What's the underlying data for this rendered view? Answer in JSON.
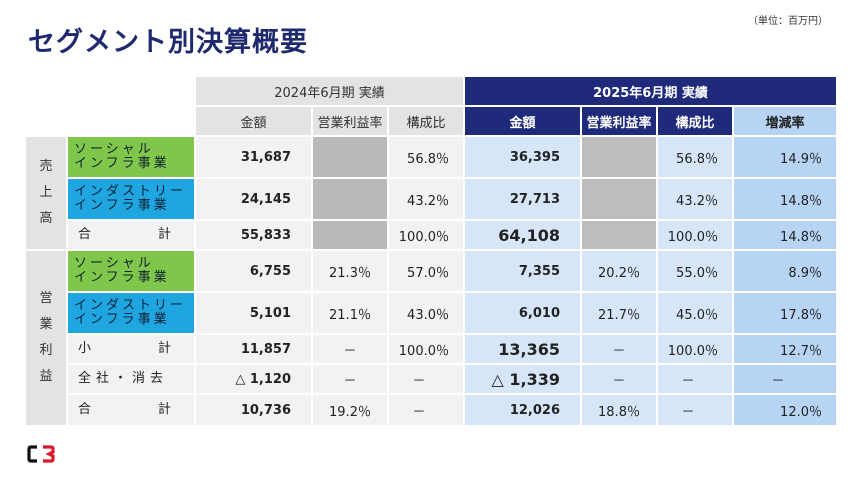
{
  "title": "セグメント別決算概要",
  "unit": "（単位：百万円）",
  "periods": {
    "p2024": "2024年6月期 実績",
    "p2025": "2025年6月期 実績"
  },
  "col_headers": {
    "amount": "金額",
    "op_margin": "営業利益率",
    "composition": "構成比",
    "change": "増減率"
  },
  "groups": {
    "sales": "売上高",
    "op_profit": "営業利益"
  },
  "rows": [
    {
      "label1": "ソーシャル",
      "label2": "インフラ事業",
      "v24": "31,687",
      "r24": "",
      "c24": "56.8％",
      "v25": "36,395",
      "r25": "",
      "c25": "56.8％",
      "g": "14.9％"
    },
    {
      "label1": "インダストリー",
      "label2": "インフラ事業",
      "v24": "24,145",
      "r24": "",
      "c24": "43.2％",
      "v25": "27,713",
      "r25": "",
      "c25": "43.2％",
      "g": "14.8％"
    },
    {
      "label1": "合",
      "label2": "計",
      "v24": "55,833",
      "r24": "",
      "c24": "100.0％",
      "v25": "64,108",
      "r25": "",
      "c25": "100.0％",
      "g": "14.8％"
    },
    {
      "label1": "ソーシャル",
      "label2": "インフラ事業",
      "v24": "6,755",
      "r24": "21.3％",
      "c24": "57.0％",
      "v25": "7,355",
      "r25": "20.2％",
      "c25": "55.0％",
      "g": "8.9％"
    },
    {
      "label1": "インダストリー",
      "label2": "インフラ事業",
      "v24": "5,101",
      "r24": "21.1％",
      "c24": "43.0％",
      "v25": "6,010",
      "r25": "21.7％",
      "c25": "45.0％",
      "g": "17.8％"
    },
    {
      "label1": "小",
      "label2": "計",
      "v24": "11,857",
      "r24": "－",
      "c24": "100.0％",
      "v25": "13,365",
      "r25": "－",
      "c25": "100.0％",
      "g": "12.7％"
    },
    {
      "label1": "全社・消去",
      "label2": "",
      "v24": "△ 1,120",
      "r24": "－",
      "c24": "－",
      "v25": "△ 1,339",
      "r25": "－",
      "c25": "－",
      "g": "－"
    },
    {
      "label1": "合",
      "label2": "計",
      "v24": "10,736",
      "r24": "19.2％",
      "c24": "－",
      "v25": "12,026",
      "r25": "18.8％",
      "c25": "－",
      "g": "12.0％"
    }
  ],
  "colors": {
    "navy": "#1f2a7a",
    "green": "#7fc64a",
    "blue": "#1fa5e0",
    "logo_red": "#d7192a"
  }
}
